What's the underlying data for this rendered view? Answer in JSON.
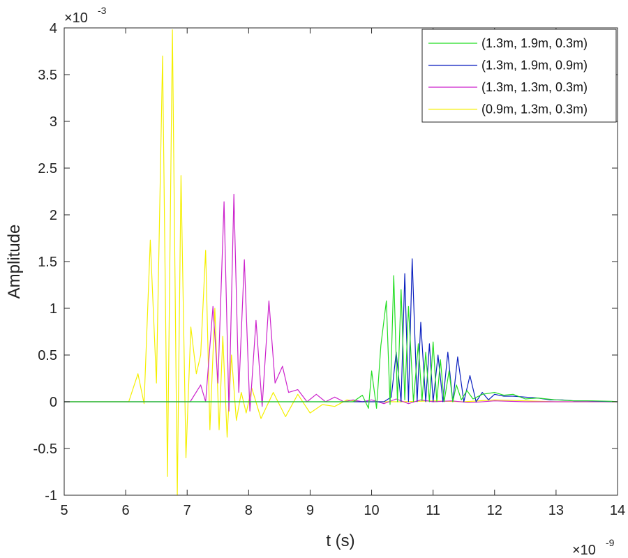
{
  "chart_data": {
    "type": "line",
    "title": "",
    "xlabel": "t (s)",
    "ylabel": "Amplitude",
    "x_multiplier": "×10",
    "x_exponent": "-9",
    "y_multiplier": "×10",
    "y_exponent": "-3",
    "xlim": [
      5,
      14
    ],
    "ylim": [
      -1,
      4
    ],
    "x_ticks": [
      "5",
      "6",
      "7",
      "8",
      "9",
      "10",
      "11",
      "12",
      "13",
      "14"
    ],
    "y_ticks": [
      "-1",
      "-0.5",
      "0",
      "0.5",
      "1",
      "1.5",
      "2",
      "2.5",
      "3",
      "3.5",
      "4"
    ],
    "grid": false,
    "legend_position": "top-right",
    "series": [
      {
        "name": "(1.3m, 1.9m, 0.3m)",
        "color": "#22dd22",
        "x": [
          5,
          9.7,
          9.85,
          9.95,
          10.0,
          10.08,
          10.15,
          10.24,
          10.3,
          10.36,
          10.42,
          10.48,
          10.54,
          10.6,
          10.68,
          10.76,
          10.82,
          10.88,
          10.94,
          11.0,
          11.06,
          11.12,
          11.18,
          11.26,
          11.32,
          11.38,
          11.46,
          11.55,
          11.65,
          11.8,
          12.0,
          12.15,
          12.3,
          12.5,
          12.7,
          13.0,
          13.3,
          13.6,
          13.9,
          14
        ],
        "y": [
          0,
          0,
          0.07,
          -0.07,
          0.33,
          -0.07,
          0.6,
          1.08,
          -0.03,
          1.35,
          0.0,
          1.2,
          0.02,
          1.02,
          0.0,
          0.62,
          0.01,
          0.53,
          0.0,
          0.64,
          0.0,
          0.45,
          0.0,
          0.33,
          0.0,
          0.18,
          0.02,
          0.12,
          0.03,
          0.08,
          0.1,
          0.07,
          0.08,
          0.03,
          0.04,
          0.02,
          0.01,
          0.01,
          0.005,
          0
        ]
      },
      {
        "name": "(1.3m, 1.9m, 0.9m)",
        "color": "#0a1fbf",
        "x": [
          5,
          10.2,
          10.32,
          10.4,
          10.48,
          10.54,
          10.6,
          10.66,
          10.74,
          10.8,
          10.88,
          10.94,
          11.0,
          11.08,
          11.16,
          11.24,
          11.32,
          11.4,
          11.5,
          11.6,
          11.7,
          11.8,
          11.9,
          12.0,
          12.15,
          12.3,
          12.5,
          12.7,
          12.9,
          13.1,
          13.3,
          13.5,
          13.7,
          14
        ],
        "y": [
          0,
          0,
          0.05,
          0.53,
          0.0,
          1.37,
          0.0,
          1.53,
          0.0,
          0.85,
          0.0,
          0.62,
          0.0,
          0.5,
          0.0,
          0.53,
          0.0,
          0.48,
          0.0,
          0.28,
          0.0,
          0.1,
          0.02,
          0.08,
          0.06,
          0.06,
          0.05,
          0.04,
          0.02,
          0.02,
          0.01,
          0.01,
          0.005,
          0
        ]
      },
      {
        "name": "(1.3m, 1.3m, 0.3m)",
        "color": "#cc22cc",
        "x": [
          5,
          7.05,
          7.22,
          7.3,
          7.42,
          7.5,
          7.6,
          7.68,
          7.76,
          7.84,
          7.93,
          8.02,
          8.12,
          8.22,
          8.33,
          8.43,
          8.55,
          8.65,
          8.8,
          8.95,
          9.1,
          9.25,
          9.4,
          9.55,
          9.7,
          9.85,
          10.0,
          10.2,
          10.4,
          10.6,
          10.8,
          11.0,
          11.3,
          11.6,
          12.0,
          12.5,
          13.0,
          14
        ],
        "y": [
          0,
          0,
          0.18,
          0.0,
          1.02,
          0.2,
          2.14,
          -0.1,
          2.22,
          0.1,
          1.52,
          -0.1,
          0.87,
          -0.05,
          1.08,
          0.2,
          0.38,
          0.1,
          0.13,
          0.0,
          0.08,
          0.0,
          0.05,
          0.0,
          0.02,
          0.0,
          0.02,
          -0.02,
          0.03,
          -0.02,
          0.02,
          0.0,
          0.01,
          -0.01,
          0.01,
          0.0,
          0.0,
          0
        ]
      },
      {
        "name": "(0.9m, 1.3m, 0.3m)",
        "color": "#f5f000",
        "x": [
          5,
          6.05,
          6.2,
          6.3,
          6.4,
          6.5,
          6.6,
          6.68,
          6.76,
          6.84,
          6.9,
          6.98,
          7.06,
          7.15,
          7.22,
          7.3,
          7.37,
          7.45,
          7.52,
          7.58,
          7.65,
          7.72,
          7.8,
          7.88,
          7.96,
          8.05,
          8.2,
          8.4,
          8.6,
          8.8,
          9.0,
          9.2,
          9.4,
          9.6,
          9.8,
          10.0,
          10.5,
          11.0,
          11.5,
          12.0,
          13.0,
          14
        ],
        "y": [
          0,
          0,
          0.3,
          -0.02,
          1.73,
          0.2,
          3.7,
          -0.8,
          3.98,
          -1.0,
          2.42,
          -0.6,
          0.8,
          0.3,
          0.5,
          1.62,
          -0.3,
          1.0,
          -0.3,
          0.7,
          -0.38,
          0.5,
          -0.2,
          0.1,
          -0.12,
          0.15,
          -0.18,
          0.1,
          -0.16,
          0.08,
          -0.12,
          -0.03,
          -0.05,
          0.02,
          0.0,
          0.0,
          0.0,
          0.01,
          0.0,
          0.02,
          0.0,
          0
        ]
      }
    ]
  }
}
